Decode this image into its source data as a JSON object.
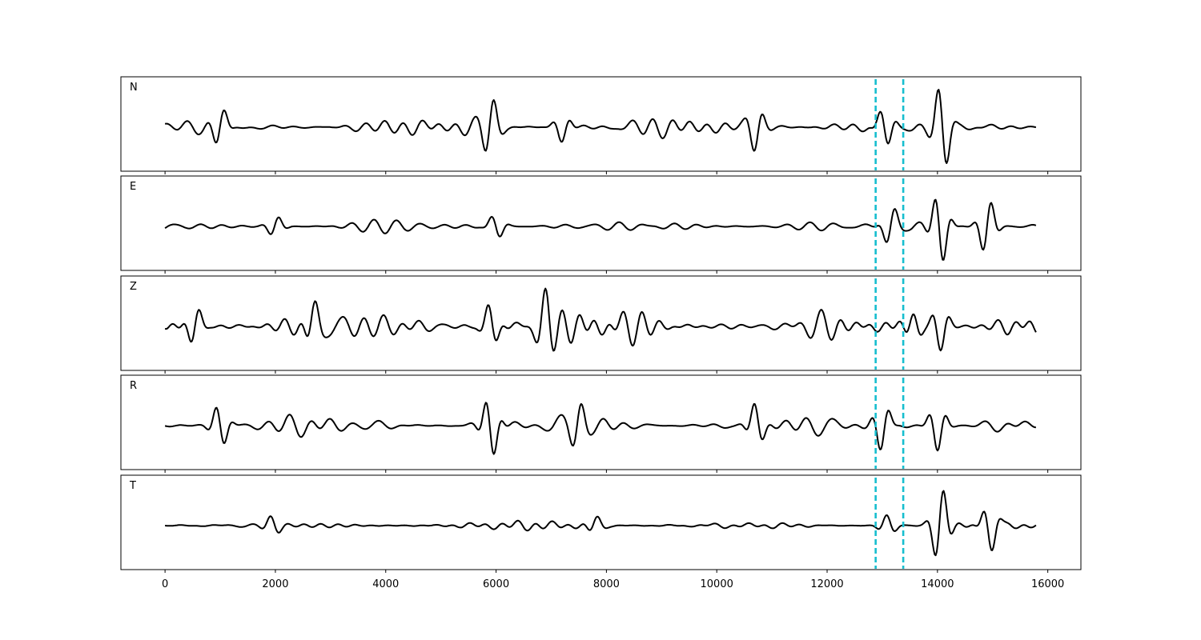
{
  "chart_data": {
    "type": "line",
    "title": "",
    "xlabel": "",
    "ylabel": "",
    "xlim": [
      -800,
      16600
    ],
    "x_ticks": [
      0,
      2000,
      4000,
      6000,
      8000,
      10000,
      12000,
      14000,
      16000
    ],
    "x_tick_labels": [
      "0",
      "2000",
      "4000",
      "6000",
      "8000",
      "10000",
      "12000",
      "14000",
      "16000"
    ],
    "sample_range": [
      0,
      15800
    ],
    "grid": false,
    "legend": "none",
    "colors": {
      "trace": "#000000",
      "marker": "#17becf"
    },
    "markers_x": [
      12880,
      13380
    ],
    "panels": [
      {
        "label": "N",
        "noise_amp": 0.26,
        "freq_seed": 1,
        "bursts": [
          {
            "x": 1000,
            "amp": 0.45
          },
          {
            "x": 5900,
            "amp": 0.62
          },
          {
            "x": 7200,
            "amp": 0.35
          },
          {
            "x": 10700,
            "amp": 0.5
          },
          {
            "x": 13050,
            "amp": 0.55
          },
          {
            "x": 14100,
            "amp": 0.95
          }
        ]
      },
      {
        "label": "E",
        "noise_amp": 0.18,
        "freq_seed": 2,
        "bursts": [
          {
            "x": 2000,
            "amp": 0.25
          },
          {
            "x": 6000,
            "amp": 0.28
          },
          {
            "x": 13150,
            "amp": 0.45
          },
          {
            "x": 14050,
            "amp": 0.95
          },
          {
            "x": 14900,
            "amp": 0.7
          }
        ]
      },
      {
        "label": "Z",
        "noise_amp": 0.52,
        "freq_seed": 3,
        "bursts": [
          {
            "x": 550,
            "amp": 0.55
          },
          {
            "x": 2700,
            "amp": 0.5
          },
          {
            "x": 5900,
            "amp": 0.55
          },
          {
            "x": 6900,
            "amp": 0.6
          },
          {
            "x": 13600,
            "amp": 0.45
          },
          {
            "x": 14050,
            "amp": 0.55
          }
        ]
      },
      {
        "label": "R",
        "noise_amp": 0.3,
        "freq_seed": 4,
        "bursts": [
          {
            "x": 1000,
            "amp": 0.55
          },
          {
            "x": 5900,
            "amp": 0.85
          },
          {
            "x": 7500,
            "amp": 0.45
          },
          {
            "x": 10700,
            "amp": 0.55
          },
          {
            "x": 13000,
            "amp": 0.6
          },
          {
            "x": 14000,
            "amp": 0.6
          }
        ]
      },
      {
        "label": "T",
        "noise_amp": 0.13,
        "freq_seed": 5,
        "bursts": [
          {
            "x": 1950,
            "amp": 0.2
          },
          {
            "x": 7800,
            "amp": 0.22
          },
          {
            "x": 13100,
            "amp": 0.25
          },
          {
            "x": 14050,
            "amp": 0.95
          },
          {
            "x": 14950,
            "amp": 0.65
          }
        ]
      }
    ]
  }
}
